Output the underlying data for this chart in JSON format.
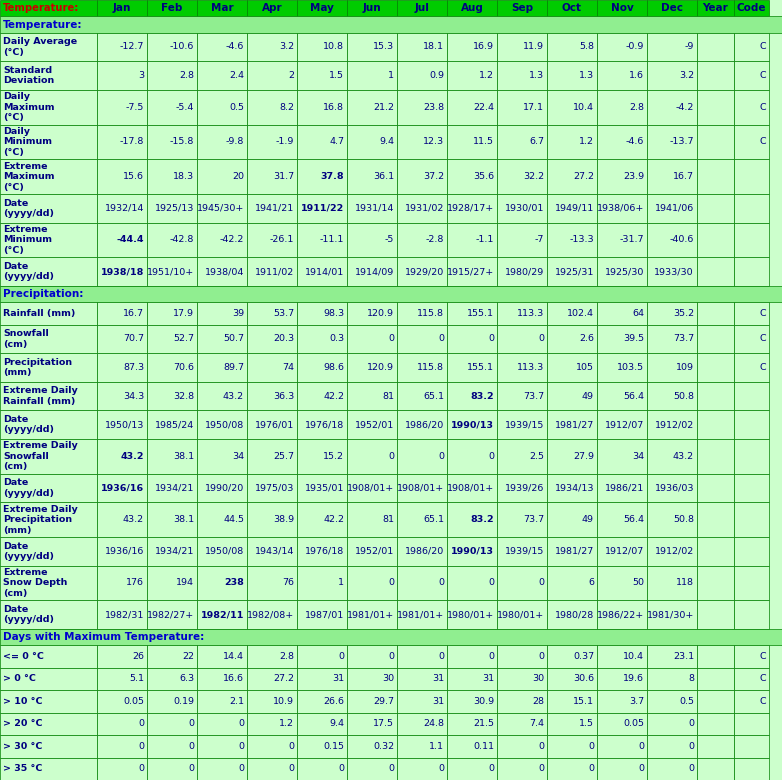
{
  "header_bg": "#00CC00",
  "header_text_color": "#000080",
  "section_header_bg": "#90EE90",
  "cell_bg": "#CCFFCC",
  "border_color": "#008000",
  "rows": [
    {
      "label": "Temperature:",
      "type": "section_header",
      "values": [],
      "bold_cols": []
    },
    {
      "label": "Daily Average\n(°C)",
      "type": "data",
      "values": [
        "-12.7",
        "-10.6",
        "-4.6",
        "3.2",
        "10.8",
        "15.3",
        "18.1",
        "16.9",
        "11.9",
        "5.8",
        "-0.9",
        "-9",
        "",
        "C"
      ],
      "bold_cols": []
    },
    {
      "label": "Standard\nDeviation",
      "type": "data",
      "values": [
        "3",
        "2.8",
        "2.4",
        "2",
        "1.5",
        "1",
        "0.9",
        "1.2",
        "1.3",
        "1.3",
        "1.6",
        "3.2",
        "",
        "C"
      ],
      "bold_cols": []
    },
    {
      "label": "Daily\nMaximum\n(°C)",
      "type": "data",
      "values": [
        "-7.5",
        "-5.4",
        "0.5",
        "8.2",
        "16.8",
        "21.2",
        "23.8",
        "22.4",
        "17.1",
        "10.4",
        "2.8",
        "-4.2",
        "",
        "C"
      ],
      "bold_cols": []
    },
    {
      "label": "Daily\nMinimum\n(°C)",
      "type": "data",
      "values": [
        "-17.8",
        "-15.8",
        "-9.8",
        "-1.9",
        "4.7",
        "9.4",
        "12.3",
        "11.5",
        "6.7",
        "1.2",
        "-4.6",
        "-13.7",
        "",
        "C"
      ],
      "bold_cols": []
    },
    {
      "label": "Extreme\nMaximum\n(°C)",
      "type": "data",
      "values": [
        "15.6",
        "18.3",
        "20",
        "31.7",
        "37.8",
        "36.1",
        "37.2",
        "35.6",
        "32.2",
        "27.2",
        "23.9",
        "16.7",
        "",
        ""
      ],
      "bold_cols": [
        4
      ]
    },
    {
      "label": "Date\n(yyyy/dd)",
      "type": "data_date",
      "values": [
        "1932/14",
        "1925/13",
        "1945/30+",
        "1941/21",
        "1911/22",
        "1931/14",
        "1931/02",
        "1928/17+",
        "1930/01",
        "1949/11",
        "1938/06+",
        "1941/06",
        "",
        ""
      ],
      "bold_cols": [
        4
      ]
    },
    {
      "label": "Extreme\nMinimum\n(°C)",
      "type": "data",
      "values": [
        "-44.4",
        "-42.8",
        "-42.2",
        "-26.1",
        "-11.1",
        "-5",
        "-2.8",
        "-1.1",
        "-7",
        "-13.3",
        "-31.7",
        "-40.6",
        "",
        ""
      ],
      "bold_cols": [
        0
      ]
    },
    {
      "label": "Date\n(yyyy/dd)",
      "type": "data_date",
      "values": [
        "1938/18",
        "1951/10+",
        "1938/04",
        "1911/02",
        "1914/01",
        "1914/09",
        "1929/20",
        "1915/27+",
        "1980/29",
        "1925/31",
        "1925/30",
        "1933/30",
        "",
        ""
      ],
      "bold_cols": [
        0
      ]
    },
    {
      "label": "Precipitation:",
      "type": "section_header",
      "values": [],
      "bold_cols": []
    },
    {
      "label": "Rainfall (mm)",
      "type": "data",
      "values": [
        "16.7",
        "17.9",
        "39",
        "53.7",
        "98.3",
        "120.9",
        "115.8",
        "155.1",
        "113.3",
        "102.4",
        "64",
        "35.2",
        "",
        "C"
      ],
      "bold_cols": []
    },
    {
      "label": "Snowfall\n(cm)",
      "type": "data",
      "values": [
        "70.7",
        "52.7",
        "50.7",
        "20.3",
        "0.3",
        "0",
        "0",
        "0",
        "0",
        "2.6",
        "39.5",
        "73.7",
        "",
        "C"
      ],
      "bold_cols": []
    },
    {
      "label": "Precipitation\n(mm)",
      "type": "data",
      "values": [
        "87.3",
        "70.6",
        "89.7",
        "74",
        "98.6",
        "120.9",
        "115.8",
        "155.1",
        "113.3",
        "105",
        "103.5",
        "109",
        "",
        "C"
      ],
      "bold_cols": []
    },
    {
      "label": "Extreme Daily\nRainfall (mm)",
      "type": "data",
      "values": [
        "34.3",
        "32.8",
        "43.2",
        "36.3",
        "42.2",
        "81",
        "65.1",
        "83.2",
        "73.7",
        "49",
        "56.4",
        "50.8",
        "",
        ""
      ],
      "bold_cols": [
        7
      ]
    },
    {
      "label": "Date\n(yyyy/dd)",
      "type": "data_date",
      "values": [
        "1950/13",
        "1985/24",
        "1950/08",
        "1976/01",
        "1976/18",
        "1952/01",
        "1986/20",
        "1990/13",
        "1939/15",
        "1981/27",
        "1912/07",
        "1912/02",
        "",
        ""
      ],
      "bold_cols": [
        7
      ]
    },
    {
      "label": "Extreme Daily\nSnowfall\n(cm)",
      "type": "data",
      "values": [
        "43.2",
        "38.1",
        "34",
        "25.7",
        "15.2",
        "0",
        "0",
        "0",
        "2.5",
        "27.9",
        "34",
        "43.2",
        "",
        ""
      ],
      "bold_cols": [
        0
      ]
    },
    {
      "label": "Date\n(yyyy/dd)",
      "type": "data_date",
      "values": [
        "1936/16",
        "1934/21",
        "1990/20",
        "1975/03",
        "1935/01",
        "1908/01+",
        "1908/01+",
        "1908/01+",
        "1939/26",
        "1934/13",
        "1986/21",
        "1936/03",
        "",
        ""
      ],
      "bold_cols": [
        0
      ]
    },
    {
      "label": "Extreme Daily\nPrecipitation\n(mm)",
      "type": "data",
      "values": [
        "43.2",
        "38.1",
        "44.5",
        "38.9",
        "42.2",
        "81",
        "65.1",
        "83.2",
        "73.7",
        "49",
        "56.4",
        "50.8",
        "",
        ""
      ],
      "bold_cols": [
        7
      ]
    },
    {
      "label": "Date\n(yyyy/dd)",
      "type": "data_date",
      "values": [
        "1936/16",
        "1934/21",
        "1950/08",
        "1943/14",
        "1976/18",
        "1952/01",
        "1986/20",
        "1990/13",
        "1939/15",
        "1981/27",
        "1912/07",
        "1912/02",
        "",
        ""
      ],
      "bold_cols": [
        7
      ]
    },
    {
      "label": "Extreme\nSnow Depth\n(cm)",
      "type": "data",
      "values": [
        "176",
        "194",
        "238",
        "76",
        "1",
        "0",
        "0",
        "0",
        "0",
        "6",
        "50",
        "118",
        "",
        ""
      ],
      "bold_cols": [
        2
      ]
    },
    {
      "label": "Date\n(yyyy/dd)",
      "type": "data_date",
      "values": [
        "1982/31",
        "1982/27+",
        "1982/11",
        "1982/08+",
        "1987/01",
        "1981/01+",
        "1981/01+",
        "1980/01+",
        "1980/01+",
        "1980/28",
        "1986/22+",
        "1981/30+",
        "",
        ""
      ],
      "bold_cols": [
        2
      ]
    },
    {
      "label": "Days with Maximum Temperature:",
      "type": "section_header",
      "values": [],
      "bold_cols": []
    },
    {
      "label": "<= 0 °C",
      "type": "data",
      "values": [
        "26",
        "22",
        "14.4",
        "2.8",
        "0",
        "0",
        "0",
        "0",
        "0",
        "0.37",
        "10.4",
        "23.1",
        "",
        "C"
      ],
      "bold_cols": []
    },
    {
      "label": "> 0 °C",
      "type": "data",
      "values": [
        "5.1",
        "6.3",
        "16.6",
        "27.2",
        "31",
        "30",
        "31",
        "31",
        "30",
        "30.6",
        "19.6",
        "8",
        "",
        "C"
      ],
      "bold_cols": []
    },
    {
      "label": "> 10 °C",
      "type": "data",
      "values": [
        "0.05",
        "0.19",
        "2.1",
        "10.9",
        "26.6",
        "29.7",
        "31",
        "30.9",
        "28",
        "15.1",
        "3.7",
        "0.5",
        "",
        "C"
      ],
      "bold_cols": []
    },
    {
      "label": "> 20 °C",
      "type": "data",
      "values": [
        "0",
        "0",
        "0",
        "1.2",
        "9.4",
        "17.5",
        "24.8",
        "21.5",
        "7.4",
        "1.5",
        "0.05",
        "0",
        "",
        ""
      ],
      "bold_cols": []
    },
    {
      "label": "> 30 °C",
      "type": "data",
      "values": [
        "0",
        "0",
        "0",
        "0",
        "0.15",
        "0.32",
        "1.1",
        "0.11",
        "0",
        "0",
        "0",
        "0",
        "",
        ""
      ],
      "bold_cols": []
    },
    {
      "label": "> 35 °C",
      "type": "data",
      "values": [
        "0",
        "0",
        "0",
        "0",
        "0",
        "0",
        "0",
        "0",
        "0",
        "0",
        "0",
        "0",
        "",
        ""
      ],
      "bold_cols": []
    }
  ],
  "col_headers": [
    "Jan",
    "Feb",
    "Mar",
    "Apr",
    "May",
    "Jun",
    "Jul",
    "Aug",
    "Sep",
    "Oct",
    "Nov",
    "Dec",
    "Year",
    "Code"
  ]
}
